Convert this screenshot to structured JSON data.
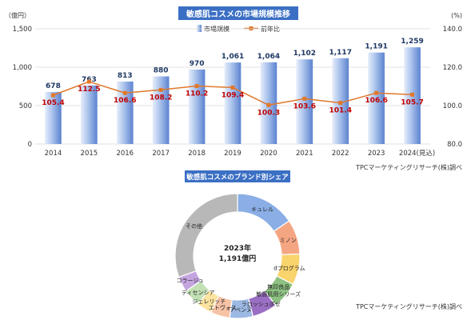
{
  "colors": {
    "title_bg": "#3b6fc4",
    "title_fg": "#ffffff",
    "bar_light": "#e6eefb",
    "bar_mid": "#a9c2ec",
    "bar_dark": "#5b82cf",
    "line": "#e0782c",
    "yoy_label": "#c00000",
    "value_label": "#1f3864",
    "grid": "#d9d9d9",
    "axis_text": "#333333"
  },
  "chart_data": [
    {
      "type": "bar",
      "title": "敏感肌コスメの市場規模推移",
      "y_unit_left": "（億円）",
      "y_unit_right": "(%)",
      "ylim": [
        0,
        1500
      ],
      "yticks": [
        "0",
        "500",
        "1,000",
        "1,500"
      ],
      "ylim_right": [
        80,
        140
      ],
      "yticks_right": [
        "80.0",
        "100.0",
        "120.0",
        "140.0"
      ],
      "categories": [
        "2014",
        "2015",
        "2016",
        "2017",
        "2018",
        "2019",
        "2020",
        "2021",
        "2022",
        "2023",
        "2024(見込)"
      ],
      "series": [
        {
          "name": "市場規模",
          "type": "bar",
          "values": [
            678,
            763,
            813,
            880,
            970,
            1061,
            1064,
            1102,
            1117,
            1191,
            1259
          ],
          "labels": [
            "678",
            "763",
            "813",
            "880",
            "970",
            "1,061",
            "1,064",
            "1,102",
            "1,117",
            "1,191",
            "1,259"
          ]
        },
        {
          "name": "前年比",
          "type": "line",
          "axis": "right",
          "values": [
            105.4,
            112.5,
            106.6,
            108.2,
            110.2,
            109.4,
            100.3,
            103.6,
            101.4,
            106.6,
            105.7
          ],
          "labels": [
            "105.4",
            "112.5",
            "106.6",
            "108.2",
            "110.2",
            "109.4",
            "100.3",
            "103.6",
            "101.4",
            "106.6",
            "105.7"
          ]
        }
      ],
      "grid": true,
      "legend_position": "top",
      "source": "TPCマーケティングリサーチ(株)調べ"
    },
    {
      "type": "pie",
      "style": "donut",
      "title": "敏感肌コスメのブランド別シェア",
      "center_label_line1": "2023年",
      "center_label_line2": "1,191億円",
      "slices": [
        {
          "label": "キュレル",
          "value": 15.5,
          "color": "#8aaee5"
        },
        {
          "label": "ミノン",
          "value": 9.0,
          "color": "#f4a582"
        },
        {
          "label": "dプログラム",
          "value": 8.0,
          "color": "#f9d36c"
        },
        {
          "label": "無印良品 敏感肌用シリーズ",
          "value": 7.0,
          "color": "#8dc182"
        },
        {
          "label": "ラロッシュポゼ",
          "value": 6.5,
          "color": "#9a6fc3"
        },
        {
          "label": "アベンヌ",
          "value": 6.0,
          "color": "#9cb9e3"
        },
        {
          "label": "エトヴォス",
          "value": 5.0,
          "color": "#f7c3a6"
        },
        {
          "label": "ジェレリッチ",
          "value": 4.0,
          "color": "#fbe3a0"
        },
        {
          "label": "ディセンシア",
          "value": 4.5,
          "color": "#c3e0b5"
        },
        {
          "label": "コラージュ",
          "value": 4.0,
          "color": "#c5a5e0"
        },
        {
          "label": "その他",
          "value": 30.5,
          "color": "#b8b8b8"
        }
      ],
      "source": "TPCマーケティングリサーチ(株)調べ"
    }
  ]
}
